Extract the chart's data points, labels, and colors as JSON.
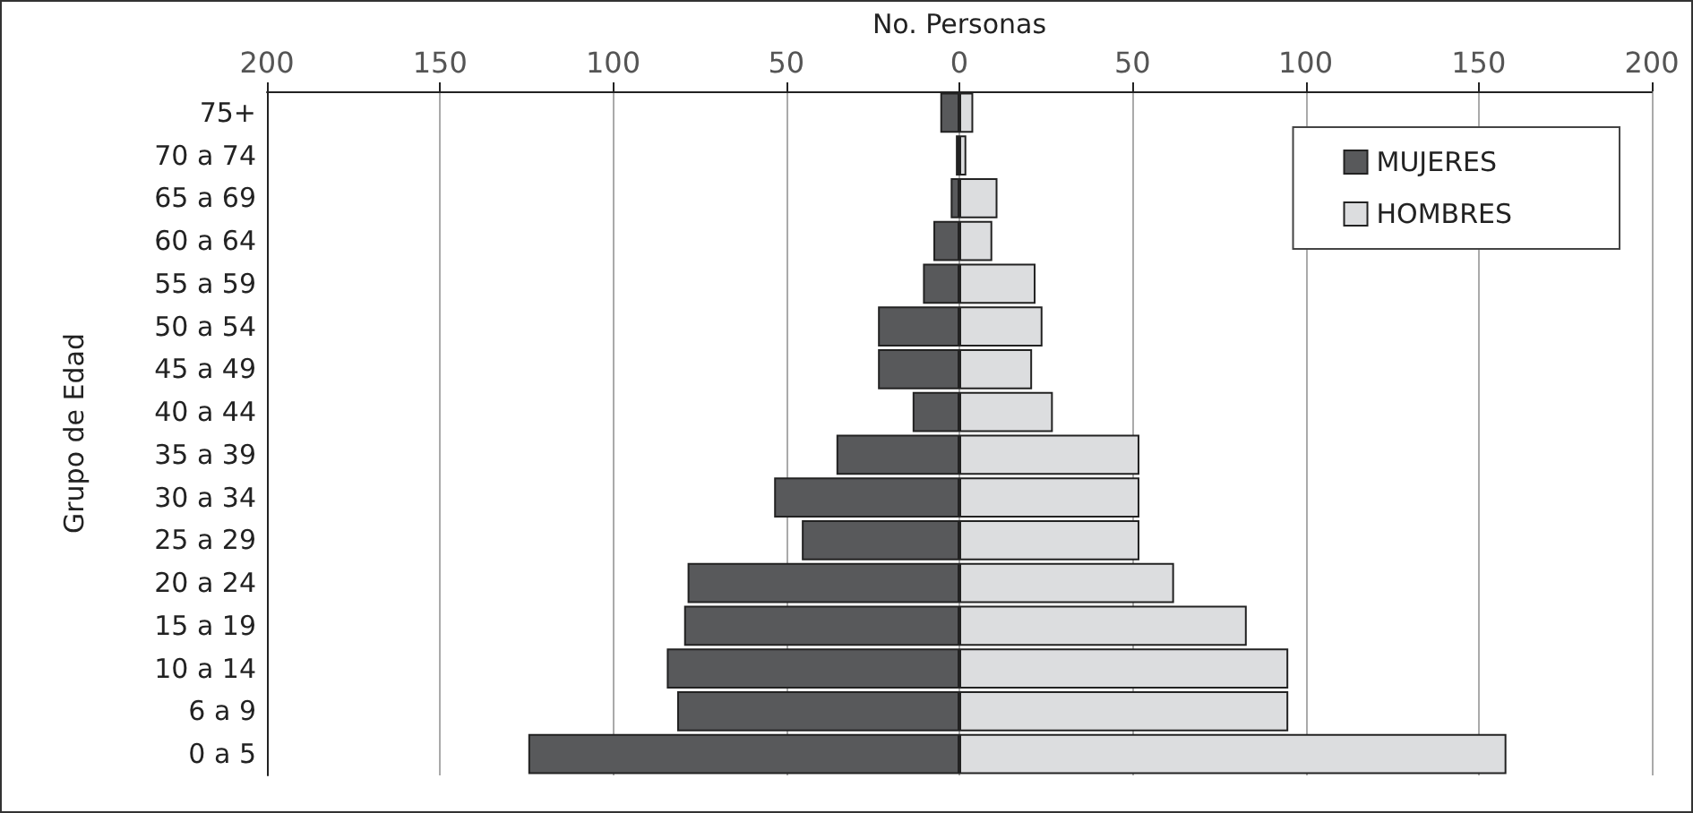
{
  "chart_data": {
    "type": "bar",
    "orientation": "horizontal",
    "stacked": true,
    "xlabel": "No. Personas",
    "ylabel": "Grupo de Edad",
    "categories": [
      "75+",
      "70 a 74",
      "65 a 69",
      "60 a 64",
      "55 a 59",
      "50 a 54",
      "45 a 49",
      "40 a 44",
      "35 a 39",
      "30 a 34",
      "25 a 29",
      "20 a 24",
      "15 a 19",
      "10 a 14",
      "6 a 9",
      "0 a 5"
    ],
    "series": [
      {
        "name": "MUJERES",
        "color": "#58595b",
        "values": [
          -5.5,
          -1,
          -2.5,
          -7.5,
          -10.5,
          -23.5,
          -23.5,
          -13.5,
          -35.5,
          -53.5,
          -45.5,
          -78.5,
          -79.5,
          -84.5,
          -81.5,
          -124.5
        ]
      },
      {
        "name": "HOMBRES",
        "color": "#dcdddf",
        "values": [
          4,
          2,
          11,
          9.5,
          22,
          24,
          21,
          27,
          52,
          52,
          52,
          62,
          83,
          95,
          95,
          158
        ]
      }
    ],
    "xlim": [
      -200,
      200
    ],
    "xticks": [
      {
        "value": -200,
        "label": "200"
      },
      {
        "value": -150,
        "label": "150"
      },
      {
        "value": -100,
        "label": "100"
      },
      {
        "value": -50,
        "label": "50"
      },
      0,
      50,
      100,
      150,
      200
    ],
    "grid": "x",
    "legend": "top right"
  }
}
